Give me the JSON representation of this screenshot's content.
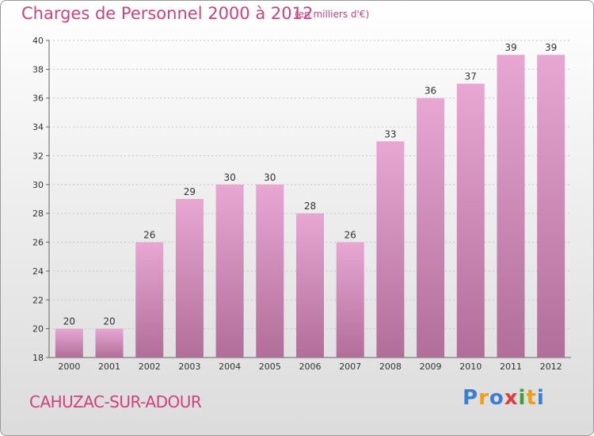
{
  "page": {
    "title": "Charges de Personnel 2000 à 2012",
    "subtitle": "(en milliers d'€)",
    "commune": "CAHUZAC-SUR-ADOUR",
    "logo": {
      "letters": [
        "P",
        "r",
        "o",
        "x",
        "i",
        "t",
        "i"
      ],
      "colors": [
        "#3a7fd0",
        "#f39c12",
        "#3a7fd0",
        "#e23b3b",
        "#3a9e3a",
        "#f39c12",
        "#3a7fd0"
      ]
    }
  },
  "chart_data": {
    "type": "bar",
    "title": "Charges de Personnel 2000 à 2012",
    "subtitle": "(en milliers d'€)",
    "categories": [
      "2000",
      "2001",
      "2002",
      "2003",
      "2004",
      "2005",
      "2006",
      "2007",
      "2008",
      "2009",
      "2010",
      "2011",
      "2012"
    ],
    "values": [
      20,
      20,
      26,
      29,
      30,
      30,
      28,
      26,
      33,
      36,
      37,
      39,
      39
    ],
    "ylim": [
      18,
      40
    ],
    "yticks": [
      18,
      20,
      22,
      24,
      26,
      28,
      30,
      32,
      34,
      36,
      38,
      40
    ],
    "grid": true,
    "bar_color": "#d48fba"
  }
}
